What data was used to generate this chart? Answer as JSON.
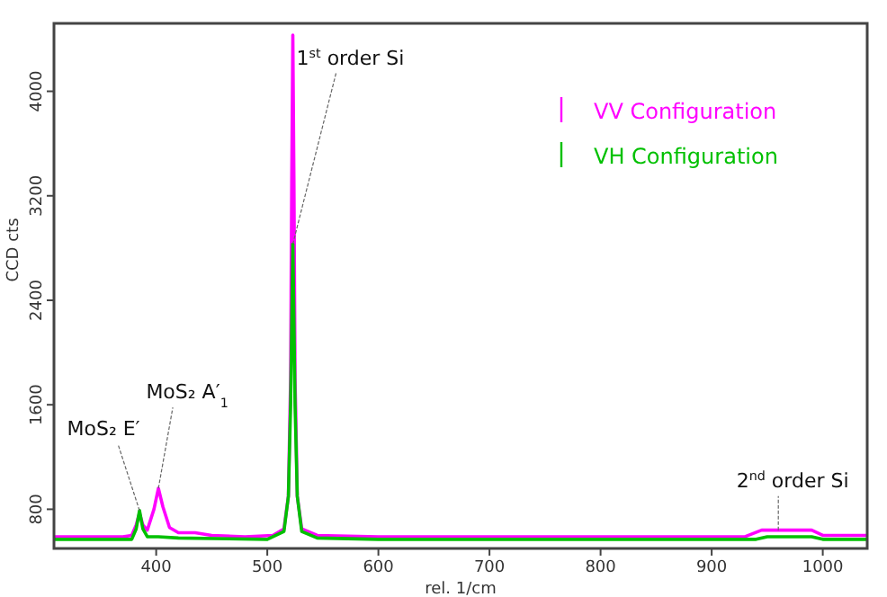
{
  "chart_data": {
    "type": "line",
    "xlabel": "rel. 1/cm",
    "ylabel": "CCD cts",
    "xlim": [
      308,
      1040
    ],
    "ylim": [
      500,
      4520
    ],
    "xticks": [
      400,
      500,
      600,
      700,
      800,
      900,
      1000
    ],
    "yticks": [
      800,
      1600,
      2400,
      3200,
      4000
    ],
    "grid": false,
    "legend": "top right",
    "marker": "none",
    "line_style": "solid",
    "series": [
      {
        "name": "VV Configuration",
        "color": "#ff00ff",
        "x": [
          308,
          370,
          378,
          382,
          385,
          388,
          392,
          398,
          402,
          406,
          412,
          420,
          435,
          450,
          480,
          505,
          515,
          519,
          521,
          522,
          523,
          524,
          525,
          527,
          531,
          545,
          600,
          700,
          800,
          930,
          945,
          990,
          1000,
          1040
        ],
        "values": [
          590,
          590,
          600,
          680,
          770,
          680,
          640,
          800,
          960,
          820,
          660,
          620,
          620,
          600,
          590,
          600,
          650,
          900,
          1800,
          3300,
          4430,
          3300,
          1800,
          900,
          650,
          600,
          590,
          590,
          590,
          590,
          640,
          640,
          600,
          600
        ]
      },
      {
        "name": "VH Configuration",
        "color": "#00c000",
        "x": [
          308,
          378,
          382,
          385,
          388,
          392,
          402,
          420,
          500,
          515,
          519,
          521,
          523,
          525,
          527,
          531,
          545,
          600,
          940,
          950,
          990,
          1000,
          1040
        ],
        "values": [
          570,
          570,
          650,
          790,
          650,
          590,
          590,
          580,
          570,
          630,
          900,
          1600,
          2830,
          1600,
          900,
          630,
          580,
          570,
          570,
          590,
          590,
          570,
          570
        ]
      }
    ],
    "annotations": [
      {
        "text": "MoS₂ E′",
        "x": 385,
        "y": 790
      },
      {
        "text": "MoS₂ A′$_{1}$",
        "x": 402,
        "y": 960
      },
      {
        "text": "1$^{st}$ order Si",
        "x": 523,
        "y": 2830
      },
      {
        "text": "2$^{nd}$ order Si",
        "x": 960,
        "y": 640
      }
    ]
  }
}
